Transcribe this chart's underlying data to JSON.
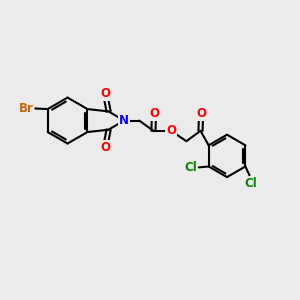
{
  "bg_color": "#EBEBEB",
  "bond_color": "#000000",
  "bond_width": 1.5,
  "atom_colors": {
    "O": "#FF0000",
    "N": "#0000FF",
    "Br": "#CC6600",
    "Cl": "#008800",
    "C": "#000000"
  },
  "font_size": 8.5
}
